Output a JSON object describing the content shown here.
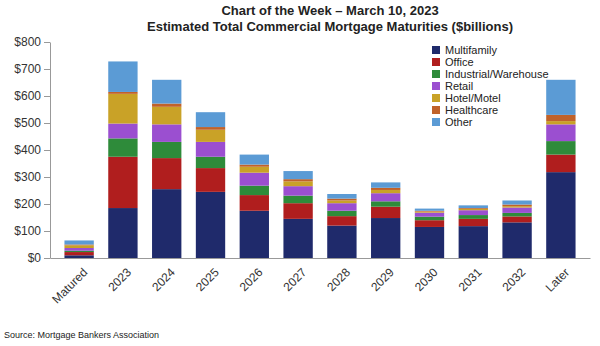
{
  "chart_data": {
    "type": "bar",
    "title": "Chart of the Week – March 10, 2023",
    "subtitle": "Estimated Total Commercial Mortgage Maturities ($billions)",
    "source": "Source: Mortgage Bankers Association",
    "categories": [
      "Matured",
      "2023",
      "2024",
      "2025",
      "2026",
      "2027",
      "2028",
      "2029",
      "2030",
      "2031",
      "2032",
      "Later"
    ],
    "series": [
      {
        "name": "Multifamily",
        "color": "#1f2a6b",
        "values": [
          10,
          185,
          255,
          245,
          175,
          145,
          120,
          148,
          115,
          118,
          132,
          318
        ]
      },
      {
        "name": "Office",
        "color": "#b01e1e",
        "values": [
          12,
          190,
          115,
          88,
          58,
          58,
          35,
          42,
          25,
          27,
          22,
          65
        ]
      },
      {
        "name": "Industrial/Warehouse",
        "color": "#2e8b3a",
        "values": [
          5,
          68,
          60,
          42,
          35,
          28,
          20,
          20,
          13,
          14,
          13,
          50
        ]
      },
      {
        "name": "Retail",
        "color": "#9b4fd0",
        "values": [
          10,
          55,
          65,
          55,
          48,
          35,
          28,
          30,
          15,
          18,
          20,
          62
        ]
      },
      {
        "name": "Hotel/Motel",
        "color": "#c9a227",
        "values": [
          10,
          110,
          65,
          45,
          22,
          18,
          10,
          12,
          4,
          5,
          5,
          12
        ]
      },
      {
        "name": "Healthcare",
        "color": "#c0622a",
        "values": [
          3,
          7,
          12,
          10,
          8,
          8,
          7,
          8,
          3,
          3,
          6,
          23
        ]
      },
      {
        "name": "Other",
        "color": "#5b9bd5",
        "values": [
          15,
          113,
          88,
          55,
          37,
          30,
          17,
          20,
          8,
          10,
          15,
          130
        ]
      }
    ],
    "ylim": [
      0,
      800
    ],
    "yticks": [
      {
        "value": 0,
        "label": "$0"
      },
      {
        "value": 100,
        "label": "$100"
      },
      {
        "value": 200,
        "label": "$200"
      },
      {
        "value": 300,
        "label": "$300"
      },
      {
        "value": 400,
        "label": "$400"
      },
      {
        "value": 500,
        "label": "$500"
      },
      {
        "value": 600,
        "label": "$600"
      },
      {
        "value": 700,
        "label": "$700"
      },
      {
        "value": 800,
        "label": "$800"
      }
    ],
    "stacked": true,
    "grid": false,
    "legend": "upper right"
  }
}
